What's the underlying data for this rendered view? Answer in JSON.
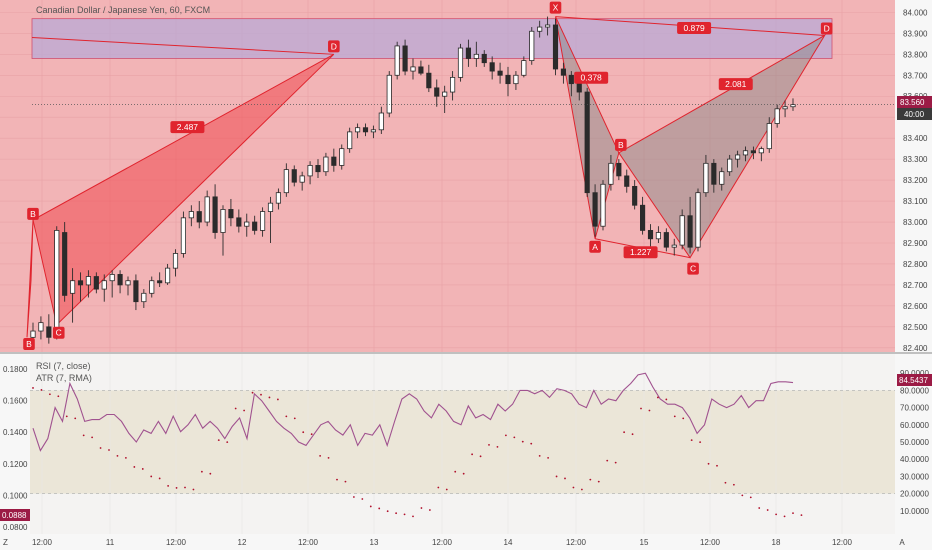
{
  "chart_data": [
    {
      "type": "candlestick",
      "title": "Canadian Dollar / Japanese Yen, 60, FXCM",
      "ylim": [
        82.38,
        84.04
      ],
      "y_ticks": [
        "84.000",
        "83.900",
        "83.800",
        "83.700",
        "83.600",
        "83.500",
        "83.400",
        "83.300",
        "83.200",
        "83.100",
        "83.000",
        "82.900",
        "82.800",
        "82.700",
        "82.600",
        "82.500",
        "82.400"
      ],
      "x_ticks": [
        "12:00",
        "11",
        "12:00",
        "12",
        "12:00",
        "13",
        "12:00",
        "14",
        "12:00",
        "15",
        "12:00",
        "18",
        "12:00",
        "A"
      ],
      "last_price": "83.560",
      "countdown": "40:00",
      "candles": [
        {
          "o": 82.45,
          "h": 82.52,
          "l": 82.4,
          "c": 82.48
        },
        {
          "o": 82.48,
          "h": 82.55,
          "l": 82.44,
          "c": 82.52
        },
        {
          "o": 82.5,
          "h": 82.56,
          "l": 82.42,
          "c": 82.45
        },
        {
          "o": 82.46,
          "h": 82.98,
          "l": 82.44,
          "c": 82.96
        },
        {
          "o": 82.95,
          "h": 83.0,
          "l": 82.62,
          "c": 82.65
        },
        {
          "o": 82.66,
          "h": 82.78,
          "l": 82.52,
          "c": 82.72
        },
        {
          "o": 82.72,
          "h": 82.76,
          "l": 82.62,
          "c": 82.7
        },
        {
          "o": 82.7,
          "h": 82.77,
          "l": 82.64,
          "c": 82.74
        },
        {
          "o": 82.74,
          "h": 82.76,
          "l": 82.66,
          "c": 82.68
        },
        {
          "o": 82.68,
          "h": 82.75,
          "l": 82.62,
          "c": 82.72
        },
        {
          "o": 82.72,
          "h": 82.77,
          "l": 82.64,
          "c": 82.75
        },
        {
          "o": 82.75,
          "h": 82.77,
          "l": 82.66,
          "c": 82.7
        },
        {
          "o": 82.7,
          "h": 82.74,
          "l": 82.65,
          "c": 82.72
        },
        {
          "o": 82.72,
          "h": 82.75,
          "l": 82.58,
          "c": 82.62
        },
        {
          "o": 82.62,
          "h": 82.68,
          "l": 82.59,
          "c": 82.66
        },
        {
          "o": 82.66,
          "h": 82.74,
          "l": 82.64,
          "c": 82.72
        },
        {
          "o": 82.72,
          "h": 82.76,
          "l": 82.69,
          "c": 82.71
        },
        {
          "o": 82.71,
          "h": 82.8,
          "l": 82.7,
          "c": 82.78
        },
        {
          "o": 82.78,
          "h": 82.87,
          "l": 82.74,
          "c": 82.85
        },
        {
          "o": 82.85,
          "h": 83.05,
          "l": 82.83,
          "c": 83.02
        },
        {
          "o": 83.02,
          "h": 83.08,
          "l": 82.98,
          "c": 83.05
        },
        {
          "o": 83.05,
          "h": 83.1,
          "l": 82.97,
          "c": 83.0
        },
        {
          "o": 83.0,
          "h": 83.15,
          "l": 82.98,
          "c": 83.12
        },
        {
          "o": 83.12,
          "h": 83.18,
          "l": 82.92,
          "c": 82.95
        },
        {
          "o": 82.95,
          "h": 83.08,
          "l": 82.84,
          "c": 83.06
        },
        {
          "o": 83.06,
          "h": 83.11,
          "l": 82.98,
          "c": 83.02
        },
        {
          "o": 83.02,
          "h": 83.06,
          "l": 82.95,
          "c": 82.98
        },
        {
          "o": 82.98,
          "h": 83.04,
          "l": 82.93,
          "c": 83.0
        },
        {
          "o": 83.0,
          "h": 83.03,
          "l": 82.94,
          "c": 82.96
        },
        {
          "o": 82.96,
          "h": 83.07,
          "l": 82.93,
          "c": 83.05
        },
        {
          "o": 83.05,
          "h": 83.12,
          "l": 82.9,
          "c": 83.09
        },
        {
          "o": 83.09,
          "h": 83.16,
          "l": 83.06,
          "c": 83.14
        },
        {
          "o": 83.14,
          "h": 83.28,
          "l": 83.12,
          "c": 83.25
        },
        {
          "o": 83.25,
          "h": 83.27,
          "l": 83.17,
          "c": 83.19
        },
        {
          "o": 83.19,
          "h": 83.24,
          "l": 83.15,
          "c": 83.22
        },
        {
          "o": 83.22,
          "h": 83.29,
          "l": 83.18,
          "c": 83.27
        },
        {
          "o": 83.27,
          "h": 83.3,
          "l": 83.21,
          "c": 83.24
        },
        {
          "o": 83.24,
          "h": 83.33,
          "l": 83.22,
          "c": 83.31
        },
        {
          "o": 83.31,
          "h": 83.35,
          "l": 83.24,
          "c": 83.27
        },
        {
          "o": 83.27,
          "h": 83.37,
          "l": 83.25,
          "c": 83.35
        },
        {
          "o": 83.35,
          "h": 83.45,
          "l": 83.33,
          "c": 83.43
        },
        {
          "o": 83.43,
          "h": 83.47,
          "l": 83.4,
          "c": 83.45
        },
        {
          "o": 83.45,
          "h": 83.47,
          "l": 83.41,
          "c": 83.43
        },
        {
          "o": 83.43,
          "h": 83.46,
          "l": 83.4,
          "c": 83.44
        },
        {
          "o": 83.44,
          "h": 83.55,
          "l": 83.42,
          "c": 83.52
        },
        {
          "o": 83.52,
          "h": 83.72,
          "l": 83.5,
          "c": 83.7
        },
        {
          "o": 83.7,
          "h": 83.86,
          "l": 83.68,
          "c": 83.84
        },
        {
          "o": 83.84,
          "h": 83.87,
          "l": 83.7,
          "c": 83.72
        },
        {
          "o": 83.72,
          "h": 83.78,
          "l": 83.68,
          "c": 83.74
        },
        {
          "o": 83.74,
          "h": 83.77,
          "l": 83.7,
          "c": 83.71
        },
        {
          "o": 83.71,
          "h": 83.75,
          "l": 83.62,
          "c": 83.64
        },
        {
          "o": 83.64,
          "h": 83.68,
          "l": 83.55,
          "c": 83.6
        },
        {
          "o": 83.6,
          "h": 83.65,
          "l": 83.52,
          "c": 83.62
        },
        {
          "o": 83.62,
          "h": 83.72,
          "l": 83.58,
          "c": 83.69
        },
        {
          "o": 83.69,
          "h": 83.85,
          "l": 83.67,
          "c": 83.83
        },
        {
          "o": 83.83,
          "h": 83.87,
          "l": 83.74,
          "c": 83.78
        },
        {
          "o": 83.78,
          "h": 83.86,
          "l": 83.74,
          "c": 83.8
        },
        {
          "o": 83.8,
          "h": 83.82,
          "l": 83.74,
          "c": 83.76
        },
        {
          "o": 83.76,
          "h": 83.79,
          "l": 83.68,
          "c": 83.72
        },
        {
          "o": 83.72,
          "h": 83.76,
          "l": 83.66,
          "c": 83.7
        },
        {
          "o": 83.7,
          "h": 83.74,
          "l": 83.6,
          "c": 83.66
        },
        {
          "o": 83.66,
          "h": 83.72,
          "l": 83.63,
          "c": 83.7
        },
        {
          "o": 83.7,
          "h": 83.79,
          "l": 83.69,
          "c": 83.77
        },
        {
          "o": 83.77,
          "h": 83.93,
          "l": 83.75,
          "c": 83.91
        },
        {
          "o": 83.91,
          "h": 83.96,
          "l": 83.88,
          "c": 83.93
        },
        {
          "o": 83.93,
          "h": 83.98,
          "l": 83.89,
          "c": 83.94
        },
        {
          "o": 83.94,
          "h": 83.97,
          "l": 83.7,
          "c": 83.73
        },
        {
          "o": 83.73,
          "h": 83.76,
          "l": 83.66,
          "c": 83.7
        },
        {
          "o": 83.7,
          "h": 83.72,
          "l": 83.6,
          "c": 83.66
        },
        {
          "o": 83.66,
          "h": 83.7,
          "l": 83.58,
          "c": 83.62
        },
        {
          "o": 83.62,
          "h": 83.64,
          "l": 83.12,
          "c": 83.14
        },
        {
          "o": 83.14,
          "h": 83.18,
          "l": 82.93,
          "c": 82.98
        },
        {
          "o": 82.98,
          "h": 83.2,
          "l": 82.96,
          "c": 83.18
        },
        {
          "o": 83.18,
          "h": 83.32,
          "l": 83.15,
          "c": 83.28
        },
        {
          "o": 83.28,
          "h": 83.3,
          "l": 83.2,
          "c": 83.22
        },
        {
          "o": 83.22,
          "h": 83.25,
          "l": 83.14,
          "c": 83.17
        },
        {
          "o": 83.17,
          "h": 83.2,
          "l": 83.06,
          "c": 83.08
        },
        {
          "o": 83.08,
          "h": 83.12,
          "l": 82.94,
          "c": 82.96
        },
        {
          "o": 82.96,
          "h": 82.99,
          "l": 82.88,
          "c": 82.92
        },
        {
          "o": 82.92,
          "h": 82.98,
          "l": 82.9,
          "c": 82.95
        },
        {
          "o": 82.95,
          "h": 82.97,
          "l": 82.86,
          "c": 82.88
        },
        {
          "o": 82.88,
          "h": 82.92,
          "l": 82.84,
          "c": 82.89
        },
        {
          "o": 82.89,
          "h": 83.06,
          "l": 82.87,
          "c": 83.03
        },
        {
          "o": 83.03,
          "h": 83.12,
          "l": 82.85,
          "c": 82.88
        },
        {
          "o": 82.88,
          "h": 83.16,
          "l": 82.86,
          "c": 83.14
        },
        {
          "o": 83.14,
          "h": 83.32,
          "l": 83.12,
          "c": 83.28
        },
        {
          "o": 83.28,
          "h": 83.3,
          "l": 83.14,
          "c": 83.18
        },
        {
          "o": 83.18,
          "h": 83.26,
          "l": 83.15,
          "c": 83.24
        },
        {
          "o": 83.24,
          "h": 83.32,
          "l": 83.22,
          "c": 83.3
        },
        {
          "o": 83.3,
          "h": 83.34,
          "l": 83.26,
          "c": 83.32
        },
        {
          "o": 83.32,
          "h": 83.36,
          "l": 83.29,
          "c": 83.34
        },
        {
          "o": 83.34,
          "h": 83.36,
          "l": 83.3,
          "c": 83.33
        },
        {
          "o": 83.33,
          "h": 83.36,
          "l": 83.29,
          "c": 83.35
        },
        {
          "o": 83.35,
          "h": 83.5,
          "l": 83.33,
          "c": 83.47
        },
        {
          "o": 83.47,
          "h": 83.56,
          "l": 83.45,
          "c": 83.54
        },
        {
          "o": 83.54,
          "h": 83.58,
          "l": 83.5,
          "c": 83.55
        },
        {
          "o": 83.55,
          "h": 83.59,
          "l": 83.53,
          "c": 83.56
        }
      ],
      "harmonic_patterns": [
        {
          "points": [
            {
              "label": "B",
              "t": 0,
              "p": 83.01
            },
            {
              "label": "C",
              "t": 3,
              "p": 82.51
            },
            {
              "label": "D",
              "t": 38,
              "p": 83.8
            }
          ],
          "ratios": [
            {
              "label": "2.487",
              "on": "B-D"
            }
          ]
        },
        {
          "points": [
            {
              "label": "X",
              "t": 66,
              "p": 83.98
            },
            {
              "label": "A",
              "t": 71,
              "p": 82.92
            },
            {
              "label": "B",
              "t": 74,
              "p": 83.33
            },
            {
              "label": "C",
              "t": 83,
              "p": 82.83
            },
            {
              "label": "D",
              "t": 100,
              "p": 83.89
            }
          ],
          "ratios": [
            {
              "label": "0.378",
              "on": "X-B"
            },
            {
              "label": "1.227",
              "on": "A-C"
            },
            {
              "label": "2.081",
              "on": "B-D"
            },
            {
              "label": "0.879",
              "on": "X-D"
            }
          ]
        }
      ],
      "highlight_zone": [
        83.78,
        83.97
      ],
      "grid": true
    },
    {
      "type": "line",
      "title": "RSI (7, close)",
      "secondary_title": "ATR (7, RMA)",
      "left_axis_ticks": [
        "0.1800",
        "0.1600",
        "0.1400",
        "0.1200",
        "0.1000",
        "0.0800"
      ],
      "right_axis_ticks": [
        "90.0000",
        "80.0000",
        "70.0000",
        "60.0000",
        "50.0000",
        "40.0000",
        "30.0000",
        "20.0000",
        "10.0000"
      ],
      "rsi_last": "84.5437",
      "atr_last": "0.0888",
      "rsi_band": [
        20,
        80
      ],
      "series": [
        {
          "name": "RSI (7, close)",
          "values": [
            58,
            45,
            52,
            70,
            62,
            84,
            75,
            62,
            63,
            63,
            66,
            66,
            62,
            55,
            50,
            57,
            55,
            62,
            55,
            65,
            56,
            60,
            66,
            58,
            62,
            58,
            52,
            59,
            64,
            52,
            78,
            74,
            68,
            62,
            58,
            55,
            50,
            48,
            54,
            60,
            62,
            57,
            54,
            60,
            48,
            55,
            54,
            60,
            48,
            62,
            75,
            78,
            75,
            68,
            64,
            72,
            68,
            62,
            60,
            71,
            64,
            66,
            63,
            72,
            68,
            72,
            80,
            80,
            78,
            80,
            76,
            81,
            80,
            78,
            72,
            70,
            80,
            72,
            75,
            74,
            80,
            84,
            89,
            90,
            82,
            75,
            72,
            72,
            70,
            64,
            55,
            60,
            75,
            72,
            70,
            72,
            77,
            70,
            74,
            74,
            84,
            85,
            85,
            84.5437
          ]
        },
        {
          "name": "ATR (7, RMA)",
          "values": [
            0.168,
            0.164,
            0.15,
            0.138,
            0.13,
            0.125,
            0.118,
            0.112,
            0.106,
            0.105,
            0.115,
            0.135,
            0.155,
            0.165,
            0.162,
            0.15,
            0.14,
            0.125,
            0.11,
            0.099,
            0.093,
            0.09,
            0.088,
            0.092,
            0.105,
            0.115,
            0.126,
            0.132,
            0.138,
            0.134,
            0.125,
            0.112,
            0.105,
            0.11,
            0.122,
            0.14,
            0.155,
            0.162,
            0.15,
            0.135,
            0.12,
            0.108,
            0.1,
            0.092,
            0.088,
            0.0888
          ]
        }
      ]
    }
  ]
}
